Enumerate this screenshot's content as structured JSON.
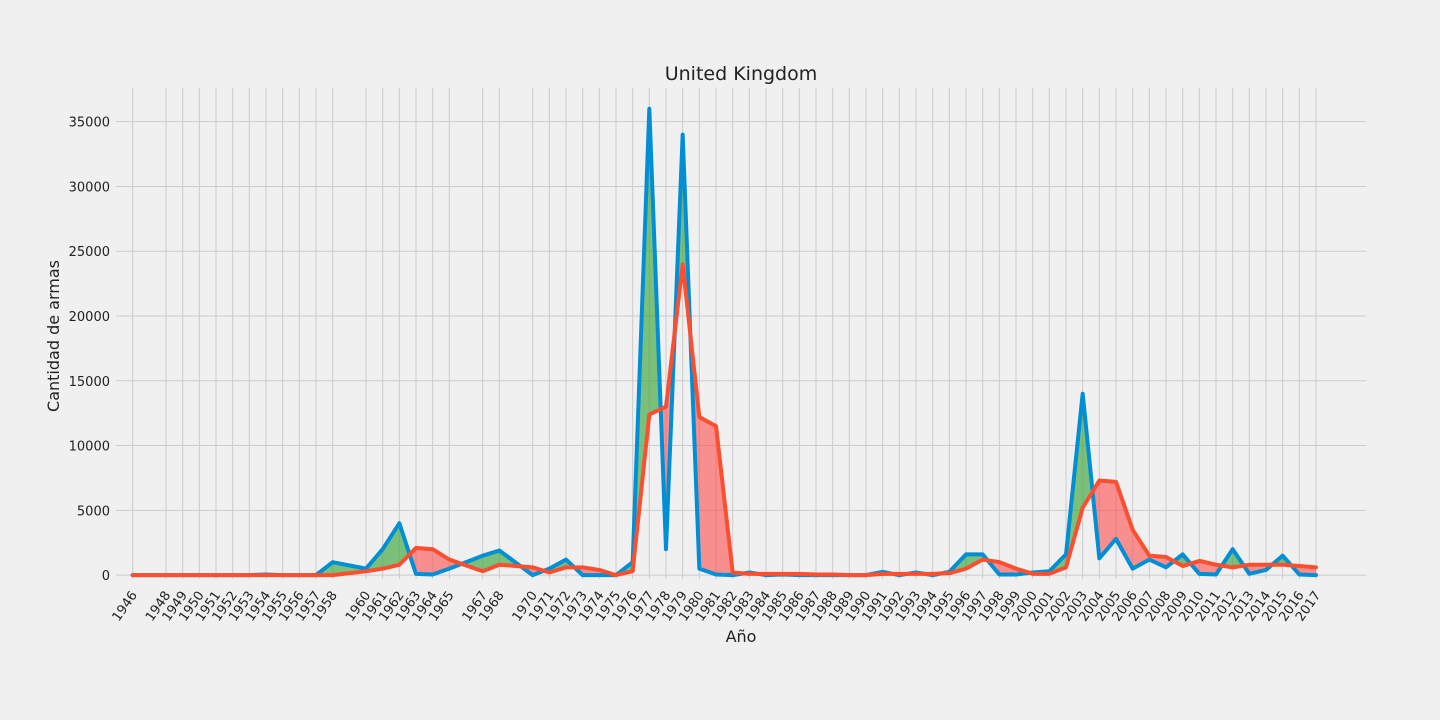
{
  "chart_data": {
    "type": "line",
    "title": "United Kingdom",
    "xlabel": "Año",
    "ylabel": "Cantidad de armas",
    "x": [
      1946,
      1948,
      1949,
      1950,
      1951,
      1952,
      1953,
      1954,
      1955,
      1956,
      1957,
      1958,
      1960,
      1961,
      1962,
      1963,
      1964,
      1965,
      1967,
      1968,
      1970,
      1971,
      1972,
      1973,
      1974,
      1975,
      1976,
      1977,
      1978,
      1979,
      1980,
      1981,
      1982,
      1983,
      1984,
      1985,
      1986,
      1987,
      1988,
      1989,
      1990,
      1991,
      1992,
      1993,
      1994,
      1995,
      1996,
      1997,
      1998,
      1999,
      2000,
      2001,
      2002,
      2003,
      2004,
      2005,
      2006,
      2007,
      2008,
      2009,
      2010,
      2011,
      2012,
      2013,
      2014,
      2015,
      2016,
      2017
    ],
    "xlim": [
      1945,
      2020
    ],
    "ylim": [
      -300,
      37600
    ],
    "yticks": [
      0,
      5000,
      10000,
      15000,
      20000,
      25000,
      30000,
      35000
    ],
    "grid": true,
    "fill_between": {
      "above_color": "#2ca02c",
      "below_color": "#ff4c4c",
      "alpha": 0.6
    },
    "series": [
      {
        "color": "#008fd5",
        "values": [
          0,
          0,
          0,
          0,
          0,
          0,
          0,
          50,
          0,
          0,
          0,
          1000,
          500,
          2000,
          4000,
          100,
          50,
          500,
          1500,
          1900,
          0,
          500,
          1200,
          0,
          0,
          0,
          1000,
          36000,
          2000,
          34000,
          500,
          50,
          0,
          200,
          0,
          50,
          0,
          0,
          0,
          0,
          0,
          250,
          0,
          200,
          0,
          250,
          1600,
          1600,
          50,
          50,
          200,
          300,
          1600,
          14000,
          1300,
          2800,
          500,
          1200,
          600,
          1600,
          100,
          50,
          2000,
          100,
          400,
          1500,
          50,
          0
        ]
      },
      {
        "color": "#fc4f30",
        "values": [
          0,
          0,
          0,
          0,
          0,
          0,
          0,
          0,
          0,
          0,
          0,
          0,
          300,
          500,
          800,
          2100,
          2000,
          1200,
          300,
          800,
          600,
          200,
          600,
          600,
          400,
          0,
          300,
          12400,
          13000,
          24000,
          12200,
          11500,
          200,
          100,
          100,
          100,
          100,
          50,
          50,
          0,
          0,
          100,
          100,
          100,
          100,
          150,
          500,
          1200,
          1000,
          500,
          100,
          100,
          600,
          5200,
          7300,
          7200,
          3500,
          1500,
          1400,
          700,
          1100,
          800,
          600,
          800,
          800,
          800,
          700,
          600
        ]
      }
    ]
  }
}
